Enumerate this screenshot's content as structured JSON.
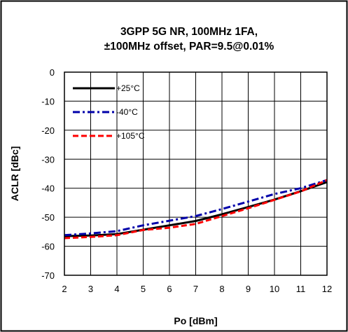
{
  "chart_data": {
    "type": "line",
    "title": [
      "3GPP 5G NR, 100MHz 1FA,",
      "±100MHz offset, PAR=9.5@0.01%"
    ],
    "xlabel": "Po [dBm]",
    "ylabel": "ACLR [dBc]",
    "xlim": [
      2,
      12
    ],
    "ylim": [
      -70,
      0
    ],
    "xticks": [
      2,
      3,
      4,
      5,
      6,
      7,
      8,
      9,
      10,
      11,
      12
    ],
    "yticks": [
      0,
      -10,
      -20,
      -30,
      -40,
      -50,
      -60,
      -70
    ],
    "grid": true,
    "legend_position": "top-left",
    "series": [
      {
        "name": "+25°C",
        "color": "#000000",
        "style": "solid",
        "x": [
          2,
          3,
          4,
          5,
          6,
          7,
          8,
          9,
          10,
          11,
          12
        ],
        "y": [
          -56.5,
          -56.3,
          -55.8,
          -54.3,
          -52.8,
          -51.3,
          -49.0,
          -46.5,
          -43.9,
          -41.0,
          -37.9
        ]
      },
      {
        "name": "-40°C",
        "color": "#0000aa",
        "style": "dashdot",
        "x": [
          2,
          3,
          4,
          5,
          6,
          7,
          8,
          9,
          10,
          11,
          12
        ],
        "y": [
          -56.2,
          -55.6,
          -54.8,
          -52.8,
          -51.2,
          -49.6,
          -47.2,
          -44.6,
          -42.0,
          -40.0,
          -37.2
        ]
      },
      {
        "name": "+105°C",
        "color": "#ff0000",
        "style": "dashed",
        "x": [
          2,
          3,
          4,
          5,
          6,
          7,
          8,
          9,
          10,
          11,
          12
        ],
        "y": [
          -57.2,
          -56.8,
          -56.2,
          -54.4,
          -53.6,
          -52.3,
          -49.6,
          -46.9,
          -44.0,
          -41.1,
          -37.2
        ]
      }
    ]
  }
}
